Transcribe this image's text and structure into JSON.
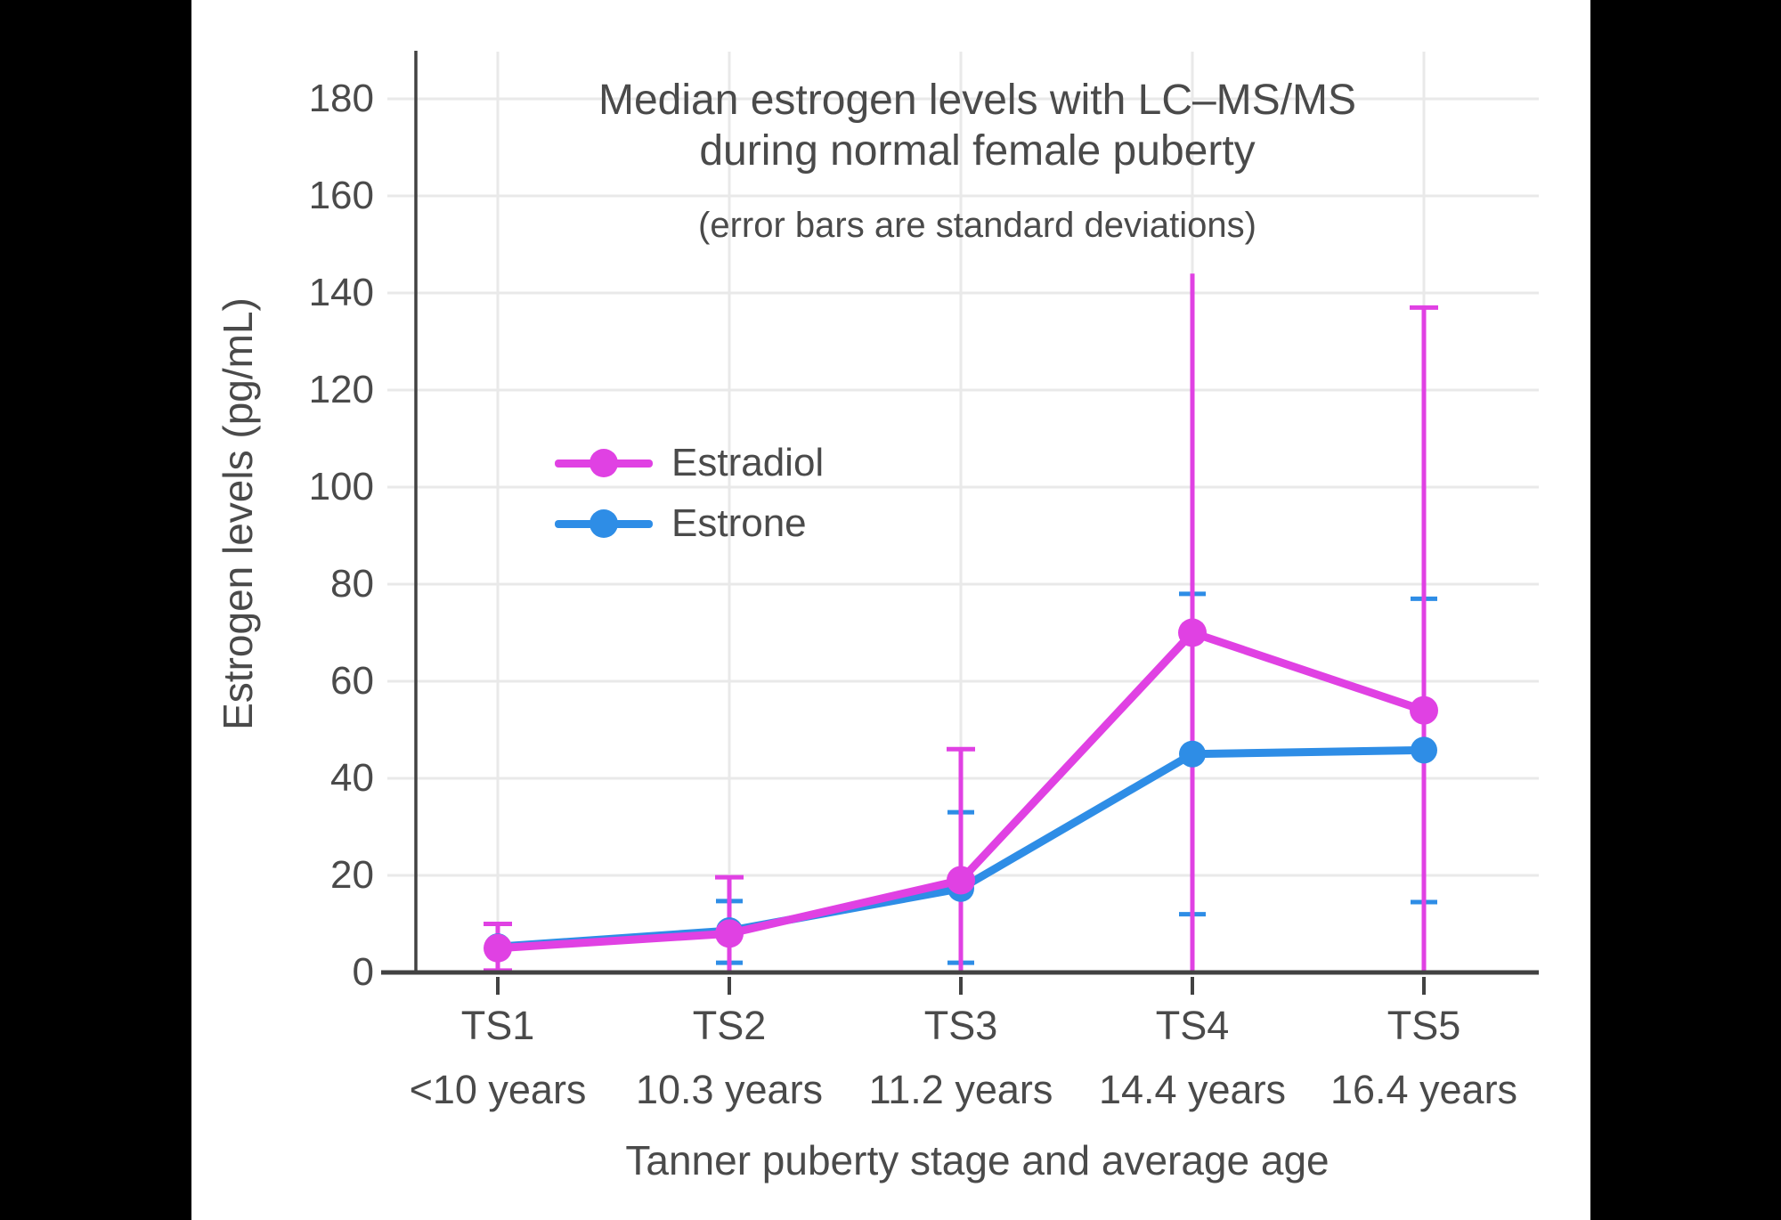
{
  "window": {
    "background": "#000000",
    "paper_background": "#ffffff"
  },
  "chart_data": {
    "type": "line",
    "title_line1": "Median estrogen levels with LC–MS/MS",
    "title_line2": "during normal female puberty",
    "subtitle": "(error bars are standard deviations)",
    "ylabel": "Estrogen levels (pg/mL)",
    "xlabel": "Tanner puberty stage and average age",
    "categories": [
      "TS1",
      "TS2",
      "TS3",
      "TS4",
      "TS5"
    ],
    "category_ages": [
      "<10 years",
      "10.3 years",
      "11.2 years",
      "14.4 years",
      "16.4 years"
    ],
    "yticks": [
      0,
      20,
      40,
      60,
      80,
      100,
      120,
      140,
      160,
      180
    ],
    "ylim": [
      0,
      190
    ],
    "grid": true,
    "legend_position": "inside-upper-left",
    "axis_color": "#424242",
    "grid_color": "#e9e9e9",
    "text_color": "#4a4a4a",
    "series": [
      {
        "name": "Estradiol",
        "color": "#e041e3",
        "values": [
          5,
          8,
          19,
          70,
          54
        ],
        "error_high": [
          10,
          19.6,
          46,
          144,
          137
        ],
        "error_high_cap": [
          true,
          true,
          true,
          false,
          true
        ],
        "error_low": [
          0.4,
          0,
          0,
          0,
          0
        ],
        "error_low_cap": [
          true,
          false,
          false,
          false,
          false
        ]
      },
      {
        "name": "Estrone",
        "color": "#2e8de6",
        "values": [
          5.3,
          8.6,
          17.3,
          45,
          45.8
        ],
        "error_high": [
          null,
          14.7,
          33,
          78,
          77
        ],
        "error_high_cap": [
          false,
          true,
          true,
          true,
          true
        ],
        "error_low": [
          null,
          2,
          2,
          12,
          14.5
        ],
        "error_low_cap": [
          false,
          true,
          true,
          true,
          true
        ]
      }
    ]
  }
}
